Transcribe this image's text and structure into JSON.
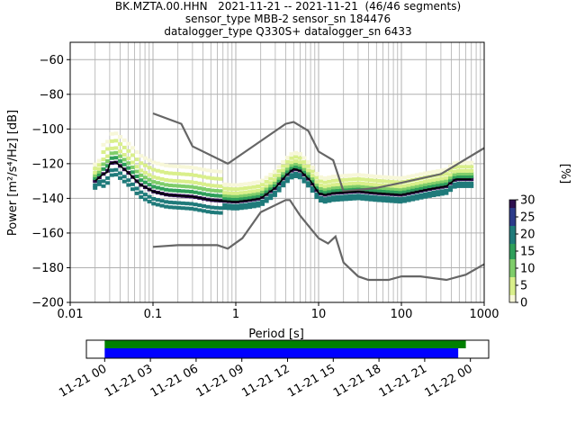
{
  "chart_data": {
    "type": "line",
    "title": [
      "BK.MZTA.00.HHN   2021-11-21 -- 2021-11-21  (46/46 segments)",
      "sensor_type MBB-2 sensor_sn 184476",
      "datalogger_type Q330S+ datalogger_sn 6433"
    ],
    "xlabel": "Period [s]",
    "ylabel": "Power [m²/s⁴/Hz] [dB]",
    "xscale": "log",
    "xlim": [
      0.01,
      1000
    ],
    "ylim": [
      -200,
      -50
    ],
    "x_ticks": [
      {
        "value": 0.01,
        "label": "0.01"
      },
      {
        "value": 0.1,
        "label": "0.1"
      },
      {
        "value": 1,
        "label": "1"
      },
      {
        "value": 10,
        "label": "10"
      },
      {
        "value": 100,
        "label": "100"
      },
      {
        "value": 1000,
        "label": "1000"
      }
    ],
    "y_ticks": [
      -60,
      -80,
      -100,
      -120,
      -140,
      -160,
      -180,
      -200
    ],
    "grid": true,
    "colorbar": {
      "label": "[%]",
      "min": 0,
      "max": 30,
      "ticks": [
        0,
        5,
        10,
        15,
        20,
        25,
        30
      ]
    },
    "series": [
      {
        "role": "reference-high",
        "color": "#666666",
        "points": [
          [
            0.1,
            -91
          ],
          [
            0.22,
            -97
          ],
          [
            0.3,
            -110
          ],
          [
            0.8,
            -120
          ],
          [
            4.0,
            -97
          ],
          [
            5.0,
            -96
          ],
          [
            7.5,
            -101
          ],
          [
            10,
            -113
          ],
          [
            15,
            -118
          ],
          [
            20,
            -136
          ],
          [
            50,
            -134
          ],
          [
            100,
            -131
          ],
          [
            300,
            -126
          ],
          [
            1000,
            -111
          ]
        ]
      },
      {
        "role": "reference-low",
        "color": "#666666",
        "points": [
          [
            0.1,
            -168
          ],
          [
            0.2,
            -167
          ],
          [
            0.6,
            -167
          ],
          [
            0.8,
            -169
          ],
          [
            1.2,
            -163
          ],
          [
            2.0,
            -148
          ],
          [
            4.0,
            -141
          ],
          [
            4.5,
            -141
          ],
          [
            6.0,
            -150
          ],
          [
            10,
            -163
          ],
          [
            13,
            -166
          ],
          [
            16,
            -162
          ],
          [
            20,
            -177
          ],
          [
            30,
            -185
          ],
          [
            40,
            -187
          ],
          [
            70,
            -187
          ],
          [
            100,
            -185
          ],
          [
            170,
            -185
          ],
          [
            350,
            -187
          ],
          [
            600,
            -184
          ],
          [
            1000,
            -178
          ]
        ]
      },
      {
        "role": "mode",
        "color": "#000000",
        "points": [
          [
            0.02,
            -130
          ],
          [
            0.025,
            -126
          ],
          [
            0.028,
            -125
          ],
          [
            0.03,
            -120
          ],
          [
            0.035,
            -119
          ],
          [
            0.05,
            -125
          ],
          [
            0.07,
            -132
          ],
          [
            0.1,
            -136
          ],
          [
            0.15,
            -138
          ],
          [
            0.3,
            -139
          ],
          [
            0.5,
            -141
          ],
          [
            1.0,
            -142
          ],
          [
            1.5,
            -141
          ],
          [
            2.0,
            -140
          ],
          [
            3.0,
            -134
          ],
          [
            4.0,
            -127
          ],
          [
            5.0,
            -123
          ],
          [
            6.0,
            -124
          ],
          [
            8.0,
            -130
          ],
          [
            10.0,
            -137
          ],
          [
            12.0,
            -138
          ],
          [
            15.0,
            -137
          ],
          [
            30.0,
            -136
          ],
          [
            50.0,
            -137
          ],
          [
            100.0,
            -138
          ],
          [
            200.0,
            -135
          ],
          [
            350.0,
            -133
          ],
          [
            450.0,
            -129
          ],
          [
            700.0,
            -129
          ]
        ]
      }
    ],
    "density": {
      "colormap": [
        "#f7f7d8",
        "#d9ef8b",
        "#7fcd6a",
        "#2e9f5a",
        "#1f7a7a",
        "#2b3a8a",
        "#2d0f4f"
      ],
      "bands": [
        {
          "offset": -5,
          "percent": 18
        },
        {
          "offset": -3,
          "percent": 22
        },
        {
          "offset": 0,
          "percent": 30
        },
        {
          "offset": 2,
          "percent": 14
        },
        {
          "offset": 4,
          "percent": 9
        },
        {
          "offset": 6,
          "percent": 6
        },
        {
          "offset": 9,
          "percent": 4
        },
        {
          "offset": 12,
          "percent": 2
        }
      ]
    },
    "timeline": {
      "tick_labels": [
        "11-21 00",
        "11-21 03",
        "11-21 06",
        "11-21 09",
        "11-21 12",
        "11-21 15",
        "11-21 18",
        "11-21 21",
        "11-22 00"
      ],
      "range_hours": [
        -1.2,
        25.2
      ],
      "green_bar_hours": [
        0,
        23.7
      ],
      "blue_bar_hours": [
        0,
        23.2
      ],
      "green_color": "#008000",
      "blue_color": "#0000ff"
    }
  }
}
